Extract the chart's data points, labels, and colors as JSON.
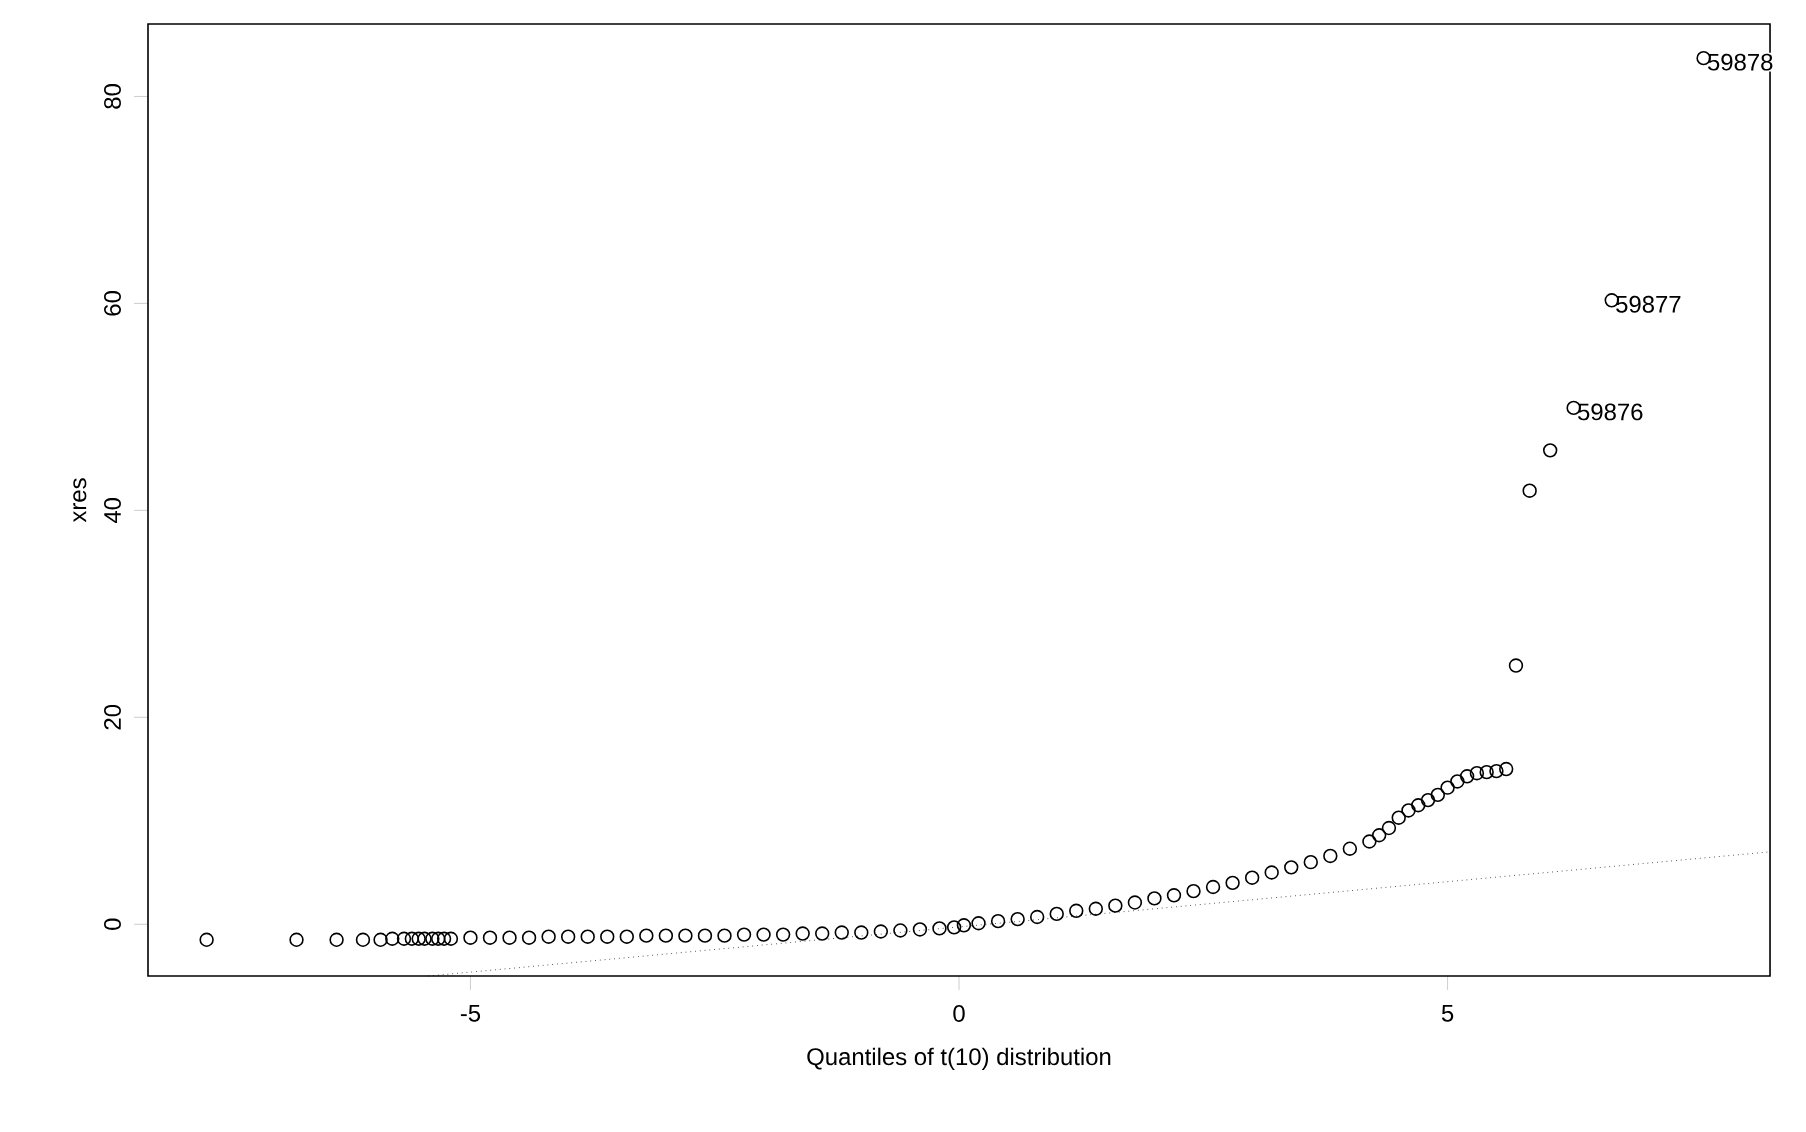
{
  "chart_data": {
    "type": "scatter",
    "xlabel": "Quantiles of t(10) distribution",
    "ylabel": "xres",
    "xlim": [
      -8.3,
      8.3
    ],
    "ylim": [
      -5,
      87
    ],
    "xticks": [
      -5,
      0,
      5
    ],
    "yticks": [
      0,
      20,
      40,
      60,
      80
    ],
    "grid": false,
    "series": [
      {
        "color": "#000000",
        "marker": "circle",
        "x": [
          -7.7,
          -6.78,
          -6.37,
          -6.1,
          -5.92,
          -5.8,
          -5.68,
          -5.6,
          -5.53,
          -5.47,
          -5.39,
          -5.33,
          -5.27,
          -5.2,
          -5.0,
          -4.8,
          -4.6,
          -4.4,
          -4.2,
          -4.0,
          -3.8,
          -3.6,
          -3.4,
          -3.2,
          -3.0,
          -2.8,
          -2.6,
          -2.4,
          -2.2,
          -2.0,
          -1.8,
          -1.6,
          -1.4,
          -1.2,
          -1.0,
          -0.8,
          -0.6,
          -0.4,
          -0.2,
          -0.05,
          0.05,
          0.2,
          0.4,
          0.6,
          0.8,
          1.0,
          1.2,
          1.4,
          1.6,
          1.8,
          2.0,
          2.2,
          2.4,
          2.6,
          2.8,
          3.0,
          3.2,
          3.4,
          3.6,
          3.8,
          4.0,
          4.2,
          4.3,
          4.4,
          4.5,
          4.6,
          4.7,
          4.8,
          4.9,
          5.0,
          5.1,
          5.2,
          5.3,
          5.4,
          5.5,
          5.6,
          5.7,
          5.84,
          6.05,
          6.29,
          6.68,
          7.62
        ],
        "values": [
          -1.5,
          -1.5,
          -1.5,
          -1.5,
          -1.5,
          -1.4,
          -1.4,
          -1.4,
          -1.4,
          -1.4,
          -1.4,
          -1.4,
          -1.4,
          -1.4,
          -1.3,
          -1.3,
          -1.3,
          -1.3,
          -1.2,
          -1.2,
          -1.2,
          -1.2,
          -1.2,
          -1.1,
          -1.1,
          -1.1,
          -1.1,
          -1.1,
          -1.0,
          -1.0,
          -1.0,
          -0.9,
          -0.9,
          -0.8,
          -0.8,
          -0.7,
          -0.6,
          -0.5,
          -0.4,
          -0.3,
          -0.1,
          0.1,
          0.3,
          0.5,
          0.7,
          1.0,
          1.3,
          1.5,
          1.8,
          2.1,
          2.5,
          2.8,
          3.2,
          3.6,
          4.0,
          4.5,
          5.0,
          5.5,
          6.0,
          6.6,
          7.3,
          8.0,
          8.6,
          9.3,
          10.3,
          11.0,
          11.5,
          12.0,
          12.5,
          13.2,
          13.8,
          14.3,
          14.6,
          14.7,
          14.8,
          15.0,
          25,
          41.9,
          45.8,
          49.9,
          60.3,
          83.7
        ]
      },
      {
        "type": "line",
        "color": "#000000",
        "line_style": "dotted",
        "x": [
          -5.43,
          8.3
        ],
        "values": [
          -5,
          7
        ]
      }
    ],
    "annotations": [
      {
        "text": "59876",
        "x": 6.29,
        "y": 49.9
      },
      {
        "text": "59877",
        "x": 6.68,
        "y": 60.3
      },
      {
        "text": "59878",
        "x": 7.62,
        "y": 83.7
      }
    ]
  }
}
